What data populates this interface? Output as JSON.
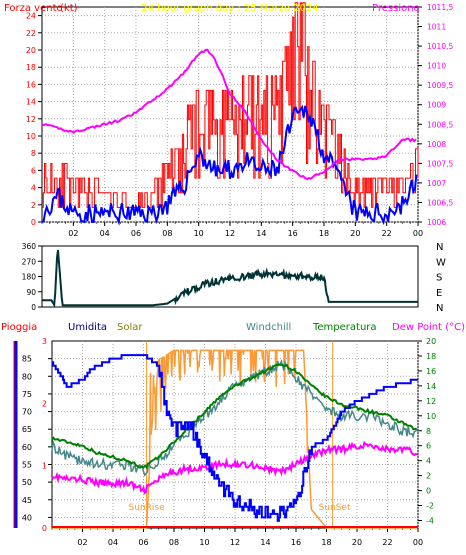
{
  "chart_data": [
    {
      "type": "line",
      "title": "24 hour graph day : 25 Marzo 2024",
      "y_left_label": "Forza vento",
      "y_left_unit": "(kt)",
      "y_right_label": "Pressione",
      "y_left_ticks": [
        0,
        2,
        4,
        6,
        8,
        10,
        12,
        14,
        16,
        18,
        20,
        22,
        24
      ],
      "y_right_ticks": [
        "1006",
        "1006,5",
        "1007",
        "1007,5",
        "1008",
        "1008,5",
        "1009",
        "1009,5",
        "1010",
        "1010,5",
        "1011",
        "1011,5"
      ],
      "x_ticks": [
        "02",
        "04",
        "06",
        "08",
        "10",
        "12",
        "14",
        "16",
        "18",
        "20",
        "22",
        "00"
      ],
      "ylim": [
        0,
        25
      ],
      "y2lim": [
        1006,
        1011.5
      ],
      "colors": {
        "gust": "#ff0000",
        "speed": "#0000ff",
        "pressure": "#ff00ff"
      },
      "series": [
        {
          "key": "gust",
          "x": [
            0,
            1,
            2,
            3,
            4,
            5,
            6,
            7,
            8,
            9,
            10,
            11,
            12,
            13,
            14,
            15,
            16,
            16.5,
            17,
            18,
            19,
            20,
            21,
            22,
            23,
            24
          ],
          "values": [
            5,
            6,
            4,
            4,
            3,
            3,
            2,
            3,
            6,
            9,
            13,
            12,
            13,
            14,
            14,
            13,
            20,
            26,
            16,
            12,
            8,
            4,
            4,
            5,
            4,
            7
          ]
        },
        {
          "key": "speed",
          "x": [
            0,
            1,
            2,
            3,
            4,
            5,
            6,
            7,
            8,
            9,
            10,
            11,
            12,
            13,
            14,
            15,
            16,
            17,
            18,
            19,
            20,
            21,
            22,
            23,
            24
          ],
          "values": [
            1,
            3,
            1,
            1,
            1,
            1,
            1,
            1,
            2,
            4,
            8,
            6,
            6,
            7,
            6,
            6,
            12,
            13,
            8,
            5,
            1,
            1,
            1,
            2,
            5
          ]
        },
        {
          "key": "pressure",
          "x": [
            0,
            1,
            2,
            3,
            4,
            5,
            6,
            7,
            8,
            9,
            10,
            10.5,
            11,
            12,
            13,
            14,
            15,
            16,
            17,
            18,
            19,
            20,
            21,
            22,
            23,
            24
          ],
          "values": [
            1008.5,
            1008.4,
            1008.3,
            1008.4,
            1008.5,
            1008.6,
            1008.8,
            1009.1,
            1009.4,
            1009.8,
            1010.3,
            1010.4,
            1010.2,
            1009.3,
            1008.8,
            1008.1,
            1007.6,
            1007.3,
            1007.1,
            1007.3,
            1007.6,
            1007.6,
            1007.6,
            1007.7,
            1008.1,
            1008.1
          ]
        }
      ]
    },
    {
      "type": "line",
      "y_ticks": [
        0,
        90,
        180,
        270,
        360
      ],
      "y_right_ticks": [
        "N",
        "W",
        "S",
        "E",
        "N"
      ],
      "ylim": [
        0,
        360
      ],
      "color": "#003333",
      "series": [
        {
          "key": "direction",
          "x": [
            0,
            0.6,
            0.8,
            1.0,
            1.3,
            2,
            3,
            4,
            5,
            6,
            7,
            8,
            9,
            10,
            11,
            12,
            13,
            14,
            15,
            16,
            17,
            18,
            18.3,
            19,
            20,
            21,
            22,
            23,
            24
          ],
          "values": [
            40,
            40,
            10,
            360,
            10,
            10,
            10,
            10,
            10,
            10,
            10,
            20,
            80,
            120,
            150,
            170,
            180,
            195,
            190,
            185,
            180,
            175,
            30,
            30,
            30,
            30,
            30,
            30,
            30
          ]
        }
      ]
    },
    {
      "type": "line",
      "legend": [
        "Pioggia",
        "Umidita",
        "Solar",
        "Windchill",
        "Temperatura",
        "Dew Point (°C)"
      ],
      "y_hum_ticks": [
        40,
        45,
        50,
        55,
        60,
        65,
        70,
        75,
        80,
        85
      ],
      "y_rain_ticks": [
        "0",
        "1",
        "2",
        "3"
      ],
      "y_temp_ticks": [
        -4,
        -2,
        0,
        2,
        4,
        6,
        8,
        10,
        12,
        14,
        16,
        18,
        20
      ],
      "x_ticks": [
        "02",
        "04",
        "06",
        "08",
        "10",
        "12",
        "14",
        "16",
        "18",
        "20",
        "22",
        "00"
      ],
      "sunrise_label": "SunRise",
      "sunset_label": "SunSet",
      "sunrise_hour": 6.2,
      "sunset_hour": 18.4,
      "colors": {
        "rain": "#ff0000",
        "humidity": "#0000ff",
        "solar": "#ff9933",
        "windchill": "#448888",
        "temperature": "#008000",
        "dewpoint": "#ff00ff"
      },
      "series": [
        {
          "key": "humidity",
          "x": [
            0,
            1,
            2,
            2.5,
            4,
            5,
            6,
            7,
            7.5,
            8,
            9,
            10,
            11,
            12,
            13,
            14,
            14.5,
            15,
            16,
            16.5,
            17,
            18,
            19,
            20,
            21,
            22,
            23,
            24
          ],
          "values": [
            84,
            77,
            79,
            82,
            85,
            86,
            86,
            83,
            70,
            65,
            67,
            57,
            49,
            45,
            43,
            41,
            40,
            41,
            44,
            52,
            60,
            62,
            70,
            73,
            75,
            77,
            78,
            79
          ]
        },
        {
          "key": "temperature",
          "x": [
            0,
            1,
            2,
            3,
            4,
            5,
            6,
            7,
            8,
            9,
            10,
            11,
            12,
            13,
            14,
            15,
            16,
            17,
            18,
            19,
            20,
            21,
            22,
            23,
            24
          ],
          "values": [
            7.0,
            6.5,
            6.0,
            5.0,
            4.5,
            4.0,
            3.0,
            4.5,
            6.5,
            8.5,
            10.5,
            12.5,
            14.0,
            15.0,
            16.0,
            17.0,
            16.0,
            14.0,
            12.5,
            11.5,
            11.0,
            10.5,
            10.0,
            9.0,
            8.0
          ]
        },
        {
          "key": "windchill",
          "x": [
            0,
            1,
            2,
            3,
            4,
            5,
            6,
            7,
            8,
            9,
            10,
            11,
            12,
            13,
            14,
            15,
            16,
            17,
            18,
            19,
            20,
            21,
            22,
            23,
            24
          ],
          "values": [
            6.0,
            4.5,
            4.0,
            3.5,
            3.5,
            3.5,
            2.5,
            4.0,
            6.0,
            8.0,
            10.0,
            12.0,
            14.0,
            15.0,
            16.0,
            17.0,
            15.0,
            13.0,
            11.0,
            10.0,
            10.0,
            10.0,
            9.0,
            8.0,
            7.5
          ]
        },
        {
          "key": "dewpoint",
          "x": [
            0,
            1,
            2,
            3,
            4,
            5,
            6,
            7,
            8,
            9,
            10,
            11,
            12,
            13,
            14,
            15,
            16,
            17,
            18,
            19,
            20,
            21,
            22,
            23,
            24
          ],
          "values": [
            2.0,
            1.5,
            1.5,
            1.0,
            1.0,
            1.0,
            0.0,
            1.5,
            2.5,
            3.0,
            3.0,
            3.5,
            3.5,
            3.5,
            3.0,
            2.5,
            3.5,
            4.5,
            5.5,
            5.5,
            6.0,
            6.0,
            5.5,
            5.5,
            5.0
          ]
        },
        {
          "key": "solar",
          "x": [
            0,
            6.2,
            6.5,
            7,
            8,
            9,
            10,
            11,
            12,
            13,
            14,
            15,
            16,
            16.5,
            17,
            18,
            18.4,
            20,
            24
          ],
          "values": [
            0,
            0,
            10,
            18,
            19,
            19,
            19,
            19,
            19,
            19,
            19,
            19,
            19,
            19,
            2,
            0,
            0,
            0,
            0
          ]
        },
        {
          "key": "rain",
          "x": [
            0,
            24
          ],
          "values": [
            0,
            0
          ]
        }
      ]
    }
  ]
}
